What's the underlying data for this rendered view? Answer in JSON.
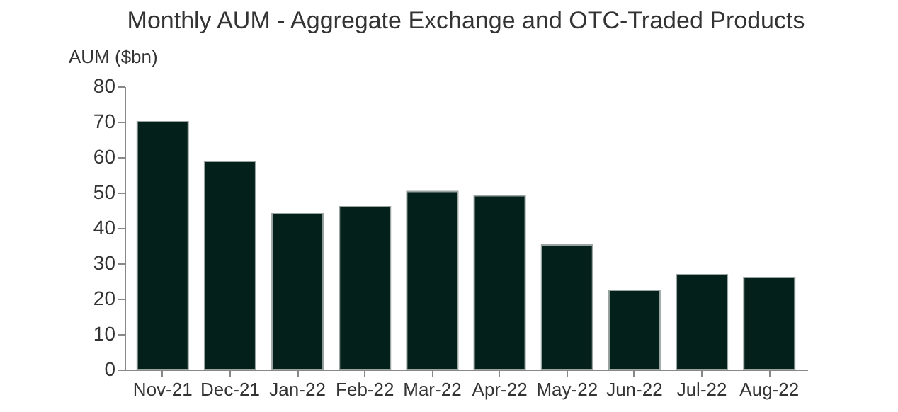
{
  "chart_data": {
    "type": "bar",
    "title": "Monthly AUM - Aggregate Exchange and OTC-Traded Products",
    "ylabel": "AUM ($bn)",
    "categories": [
      "Nov-21",
      "Dec-21",
      "Jan-22",
      "Feb-22",
      "Mar-22",
      "Apr-22",
      "May-22",
      "Jun-22",
      "Jul-22",
      "Aug-22"
    ],
    "values": [
      70,
      58.8,
      44,
      46,
      50.3,
      49.1,
      35.2,
      22.4,
      26.8,
      26
    ],
    "color": "#03201a",
    "ylim": [
      0,
      80
    ],
    "yticks": [
      0,
      10,
      20,
      30,
      40,
      50,
      60,
      70,
      80
    ],
    "grid": false
  }
}
